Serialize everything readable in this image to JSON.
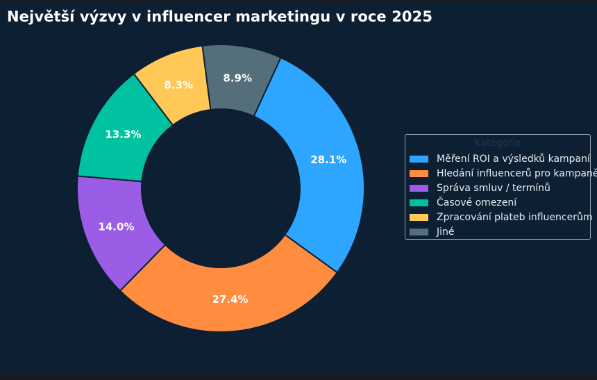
{
  "chart_data": {
    "type": "pie",
    "title": "Největší výzvy v influencer marketingu v roce 2025",
    "donut": true,
    "legend": {
      "title": "Kategorie",
      "placement": "right"
    },
    "slices": [
      {
        "label": "Měření ROI a výsledků kampaní",
        "value": 28.1,
        "display": "28.1%",
        "color": "#2ea6ff"
      },
      {
        "label": "Hledání influencerů pro kampaně",
        "value": 27.4,
        "display": "27.4%",
        "color": "#ff8c3f"
      },
      {
        "label": "Správa smluv / termínů",
        "value": 14.0,
        "display": "14.0%",
        "color": "#9b5de5"
      },
      {
        "label": "Časové omezení",
        "value": 13.3,
        "display": "13.3%",
        "color": "#00c2a0"
      },
      {
        "label": "Zpracování plateb influencerům",
        "value": 8.3,
        "display": "8.3%",
        "color": "#ffc857"
      },
      {
        "label": "Jiné",
        "value": 8.9,
        "display": "8.9%",
        "color": "#546e7a"
      }
    ]
  }
}
